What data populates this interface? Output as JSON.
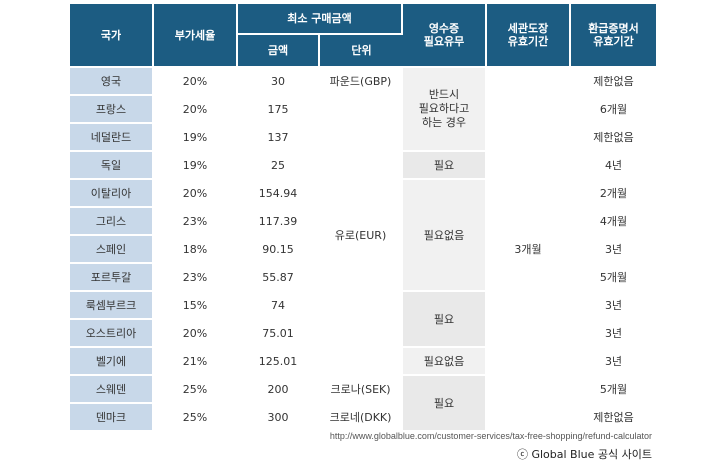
{
  "headers": {
    "country": "국가",
    "vat": "부가세율",
    "min_purchase": "최소 구매금액",
    "amount": "금액",
    "unit": "단위",
    "receipt": [
      "영수증",
      "필요유무"
    ],
    "customs": [
      "세관도장",
      "유효기간"
    ],
    "refund": [
      "환급증명서",
      "유효기간"
    ]
  },
  "rows": [
    {
      "country": "영국",
      "vat": "20%",
      "amount": "30",
      "refund": "제한없음"
    },
    {
      "country": "프랑스",
      "vat": "20%",
      "amount": "175",
      "refund": "6개월"
    },
    {
      "country": "네덜란드",
      "vat": "19%",
      "amount": "137",
      "refund": "제한없음"
    },
    {
      "country": "독일",
      "vat": "19%",
      "amount": "25",
      "refund": "4년"
    },
    {
      "country": "이탈리아",
      "vat": "20%",
      "amount": "154.94",
      "refund": "2개월"
    },
    {
      "country": "그리스",
      "vat": "23%",
      "amount": "117.39",
      "refund": "4개월"
    },
    {
      "country": "스페인",
      "vat": "18%",
      "amount": "90.15",
      "refund": "3년"
    },
    {
      "country": "포르투갈",
      "vat": "23%",
      "amount": "55.87",
      "refund": "5개월"
    },
    {
      "country": "룩셈부르크",
      "vat": "15%",
      "amount": "74",
      "refund": "3년"
    },
    {
      "country": "오스트리아",
      "vat": "20%",
      "amount": "75.01",
      "refund": "3년"
    },
    {
      "country": "벨기에",
      "vat": "21%",
      "amount": "125.01",
      "refund": "3년"
    },
    {
      "country": "스웨덴",
      "vat": "25%",
      "amount": "200",
      "refund": "5개월"
    },
    {
      "country": "덴마크",
      "vat": "25%",
      "amount": "300",
      "refund": "제한없음"
    }
  ],
  "units": {
    "gbp": "파운드(GBP)",
    "eur": "유로(EUR)",
    "sek": "크로나(SEK)",
    "dkk": "크로네(DKK)"
  },
  "receipt": {
    "g1": [
      "반드시",
      "필요하다고",
      "하는 경우"
    ],
    "g2": "필요",
    "g3": "필요없음",
    "g4": "필요",
    "g5": "필요없음",
    "g6": "필요"
  },
  "customs_validity": "3개월",
  "source_url": "http://www.globalblue.com/customer-services/tax-free-shopping/refund-calculator",
  "copyright": "ⓒ Global Blue 공식 사이트"
}
